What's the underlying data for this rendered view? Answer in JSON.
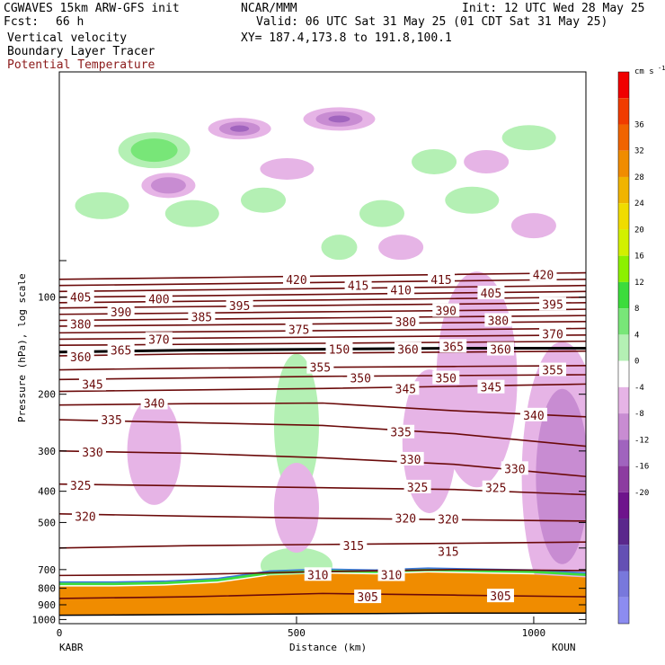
{
  "header": {
    "model": "CGWAVES 15km ARW-GFS init",
    "org": "NCAR/MMM",
    "init": "Init: 12 UTC Wed 28 May 25",
    "fcst_label": "Fcst:",
    "fcst_value": "66 h",
    "valid": "Valid: 06 UTC Sat 31 May 25 (01 CDT Sat 31 May 25)",
    "field1": "Vertical velocity",
    "field2": "Boundary Layer Tracer",
    "field3": "Potential Temperature",
    "xy": "XY= 187.4,173.8 to 191.8,100.1"
  },
  "colors": {
    "theta": "#6b0a0a",
    "field3_text": "#8b1a1a"
  },
  "chart_data": {
    "type": "heatmap",
    "x_axis": {
      "label": "Distance (km)",
      "range": [
        0,
        1110
      ],
      "ticks": [
        0,
        500,
        1000
      ],
      "left_station": "KABR",
      "right_station": "KOUN"
    },
    "y_axis": {
      "label": "Pressure (hPa), log scale",
      "scale": "log",
      "range": [
        1030,
        20
      ],
      "ticks": [
        100,
        200,
        300,
        400,
        500,
        600,
        700,
        800,
        900,
        1000
      ],
      "tick_labels": [
        "100",
        "200",
        "300",
        "400",
        "500",
        "",
        "700",
        "800",
        "900",
        "1000"
      ]
    },
    "colorbar": {
      "unit": "cm s",
      "unit_exp": "-1",
      "labels": [
        "36",
        "32",
        "28",
        "24",
        "20",
        "16",
        "12",
        "8",
        "4",
        "0",
        "-4",
        "-8",
        "-12",
        "-16",
        "-20"
      ],
      "colors": [
        "#f00000",
        "#f03c00",
        "#f06400",
        "#f08c00",
        "#f0b400",
        "#f0dc00",
        "#d2f000",
        "#8cf000",
        "#3cdc3c",
        "#78e678",
        "#b4f0b4",
        "#ffffff",
        "#e6b4e6",
        "#c88cd2",
        "#a064be",
        "#8c3ca0",
        "#6e148c",
        "#5a288c",
        "#6450b4",
        "#7878dc",
        "#8c8cf0"
      ]
    },
    "theta_contours": [
      {
        "value": 420,
        "p": [
          88,
          87,
          86,
          85,
          84
        ]
      },
      {
        "value": 415,
        "p": [
          92,
          91,
          90,
          89,
          88
        ]
      },
      {
        "value": 410,
        "p": [
          96,
          95,
          94,
          93,
          92
        ]
      },
      {
        "value": 405,
        "p": [
          100,
          99,
          98,
          97,
          96
        ]
      },
      {
        "value": 400,
        "p": [
          104,
          103,
          102,
          101,
          100
        ]
      },
      {
        "value": 395,
        "p": [
          108,
          107,
          106,
          105,
          104
        ]
      },
      {
        "value": 390,
        "p": [
          113,
          112,
          111,
          110,
          109
        ]
      },
      {
        "value": 385,
        "p": [
          118,
          117,
          116,
          115,
          114
        ]
      },
      {
        "value": 380,
        "p": [
          123,
          122,
          121,
          120,
          119
        ]
      },
      {
        "value": 375,
        "p": [
          129,
          128,
          127,
          126,
          125
        ]
      },
      {
        "value": 370,
        "p": [
          135,
          134,
          133,
          132,
          131
        ]
      },
      {
        "value": 365,
        "p": [
          141,
          140,
          139,
          138,
          137
        ]
      },
      {
        "value": 360,
        "p": [
          152,
          150,
          149,
          148,
          147
        ]
      },
      {
        "value": 355,
        "p": [
          168,
          166,
          165,
          164,
          163
        ]
      },
      {
        "value": 350,
        "p": [
          180,
          178,
          176,
          175,
          174
        ]
      },
      {
        "value": 345,
        "p": [
          196,
          194,
          192,
          189,
          186
        ]
      },
      {
        "value": 340,
        "p": [
          216,
          214,
          213,
          225,
          235
        ]
      },
      {
        "value": 335,
        "p": [
          240,
          245,
          250,
          265,
          290
        ]
      },
      {
        "value": 330,
        "p": [
          300,
          305,
          315,
          330,
          360
        ]
      },
      {
        "value": 325,
        "p": [
          380,
          385,
          390,
          395,
          410
        ]
      },
      {
        "value": 320,
        "p": [
          470,
          478,
          485,
          490,
          495
        ]
      },
      {
        "value": 315,
        "p": [
          600,
          590,
          585,
          580,
          575
        ]
      },
      {
        "value": 310,
        "p": [
          730,
          725,
          710,
          700,
          705
        ]
      },
      {
        "value": 305,
        "p": [
          860,
          850,
          830,
          840,
          850
        ]
      }
    ],
    "theta_labels": [
      {
        "text": "420",
        "x": 500,
        "p": 88
      },
      {
        "text": "415",
        "x": 630,
        "p": 92
      },
      {
        "text": "410",
        "x": 720,
        "p": 95
      },
      {
        "text": "415",
        "x": 805,
        "p": 88
      },
      {
        "text": "420",
        "x": 1020,
        "p": 85
      },
      {
        "text": "405",
        "x": 45,
        "p": 100
      },
      {
        "text": "400",
        "x": 210,
        "p": 101
      },
      {
        "text": "395",
        "x": 380,
        "p": 106
      },
      {
        "text": "405",
        "x": 910,
        "p": 97
      },
      {
        "text": "395",
        "x": 1040,
        "p": 105
      },
      {
        "text": "390",
        "x": 130,
        "p": 111
      },
      {
        "text": "385",
        "x": 300,
        "p": 115
      },
      {
        "text": "390",
        "x": 815,
        "p": 110
      },
      {
        "text": "380",
        "x": 45,
        "p": 121
      },
      {
        "text": "375",
        "x": 505,
        "p": 126
      },
      {
        "text": "380",
        "x": 730,
        "p": 119
      },
      {
        "text": "380",
        "x": 925,
        "p": 118
      },
      {
        "text": "370",
        "x": 1040,
        "p": 130
      },
      {
        "text": "370",
        "x": 210,
        "p": 135
      },
      {
        "text": "365",
        "x": 830,
        "p": 142
      },
      {
        "text": "360",
        "x": 45,
        "p": 153
      },
      {
        "text": "355",
        "x": 550,
        "p": 165
      },
      {
        "text": "355",
        "x": 1040,
        "p": 168
      },
      {
        "text": "350",
        "x": 635,
        "p": 178
      },
      {
        "text": "350",
        "x": 815,
        "p": 178
      },
      {
        "text": "345",
        "x": 70,
        "p": 186
      },
      {
        "text": "345",
        "x": 730,
        "p": 192
      },
      {
        "text": "345",
        "x": 910,
        "p": 190
      },
      {
        "text": "340",
        "x": 200,
        "p": 213
      },
      {
        "text": "340",
        "x": 1000,
        "p": 232
      },
      {
        "text": "335",
        "x": 110,
        "p": 240
      },
      {
        "text": "335",
        "x": 720,
        "p": 262
      },
      {
        "text": "330",
        "x": 70,
        "p": 302
      },
      {
        "text": "330",
        "x": 740,
        "p": 318
      },
      {
        "text": "330",
        "x": 960,
        "p": 340
      },
      {
        "text": "325",
        "x": 45,
        "p": 383
      },
      {
        "text": "325",
        "x": 755,
        "p": 388
      },
      {
        "text": "325",
        "x": 920,
        "p": 390
      },
      {
        "text": "320",
        "x": 55,
        "p": 478
      },
      {
        "text": "320",
        "x": 730,
        "p": 485
      },
      {
        "text": "320",
        "x": 820,
        "p": 487
      },
      {
        "text": "315",
        "x": 620,
        "p": 590
      },
      {
        "text": "315",
        "x": 820,
        "p": 615
      },
      {
        "text": "310",
        "x": 545,
        "p": 725
      },
      {
        "text": "310",
        "x": 700,
        "p": 726
      },
      {
        "text": "305",
        "x": 650,
        "p": 850
      },
      {
        "text": "305",
        "x": 930,
        "p": 845
      }
    ],
    "tropopause_line": {
      "p": [
        148,
        146,
        145,
        144,
        144
      ]
    },
    "tropopause_labels": [
      {
        "text": "365",
        "x": 130,
        "p": 146
      },
      {
        "text": "150",
        "x": 590,
        "p": 145
      },
      {
        "text": "360",
        "x": 735,
        "p": 145
      },
      {
        "text": "360",
        "x": 930,
        "p": 145
      }
    ],
    "boundary_layer": {
      "top_p": [
        790,
        790,
        785,
        770,
        730,
        720,
        725,
        715,
        720,
        725,
        740
      ],
      "surface_p": [
        970,
        968,
        966,
        964,
        962,
        960,
        958,
        956,
        955,
        955,
        955
      ]
    },
    "w_positive": [
      {
        "x": 200,
        "p": 35,
        "rx": 40,
        "ry": 20,
        "level": 2
      },
      {
        "x": 90,
        "p": 52,
        "rx": 30,
        "ry": 15,
        "level": 1
      },
      {
        "x": 280,
        "p": 55,
        "rx": 30,
        "ry": 15,
        "level": 1
      },
      {
        "x": 430,
        "p": 50,
        "rx": 25,
        "ry": 14,
        "level": 1
      },
      {
        "x": 590,
        "p": 70,
        "rx": 20,
        "ry": 14,
        "level": 1
      },
      {
        "x": 680,
        "p": 55,
        "rx": 25,
        "ry": 15,
        "level": 1
      },
      {
        "x": 790,
        "p": 38,
        "rx": 25,
        "ry": 14,
        "level": 1
      },
      {
        "x": 870,
        "p": 50,
        "rx": 30,
        "ry": 15,
        "level": 1
      },
      {
        "x": 990,
        "p": 32,
        "rx": 30,
        "ry": 14,
        "level": 1
      },
      {
        "x": 500,
        "p": 250,
        "rx": 25,
        "ry": 80,
        "level": 1
      },
      {
        "x": 1050,
        "p": 530,
        "rx": 20,
        "ry": 40,
        "level": 1
      },
      {
        "x": 500,
        "p": 680,
        "rx": 40,
        "ry": 20,
        "level": 1
      }
    ],
    "w_negative": [
      {
        "x": 380,
        "p": 30,
        "rx": 35,
        "ry": 12,
        "level": 3
      },
      {
        "x": 590,
        "p": 28,
        "rx": 40,
        "ry": 13,
        "level": 3
      },
      {
        "x": 230,
        "p": 45,
        "rx": 30,
        "ry": 14,
        "level": 2
      },
      {
        "x": 480,
        "p": 40,
        "rx": 30,
        "ry": 12,
        "level": 1
      },
      {
        "x": 720,
        "p": 70,
        "rx": 25,
        "ry": 14,
        "level": 1
      },
      {
        "x": 900,
        "p": 38,
        "rx": 25,
        "ry": 13,
        "level": 1
      },
      {
        "x": 1000,
        "p": 60,
        "rx": 25,
        "ry": 14,
        "level": 1
      },
      {
        "x": 880,
        "p": 180,
        "rx": 45,
        "ry": 120,
        "level": 1
      },
      {
        "x": 1060,
        "p": 360,
        "rx": 45,
        "ry": 150,
        "level": 2
      },
      {
        "x": 780,
        "p": 280,
        "rx": 30,
        "ry": 80,
        "level": 1
      },
      {
        "x": 500,
        "p": 450,
        "rx": 25,
        "ry": 50,
        "level": 1
      },
      {
        "x": 200,
        "p": 300,
        "rx": 30,
        "ry": 60,
        "level": 1
      }
    ]
  }
}
